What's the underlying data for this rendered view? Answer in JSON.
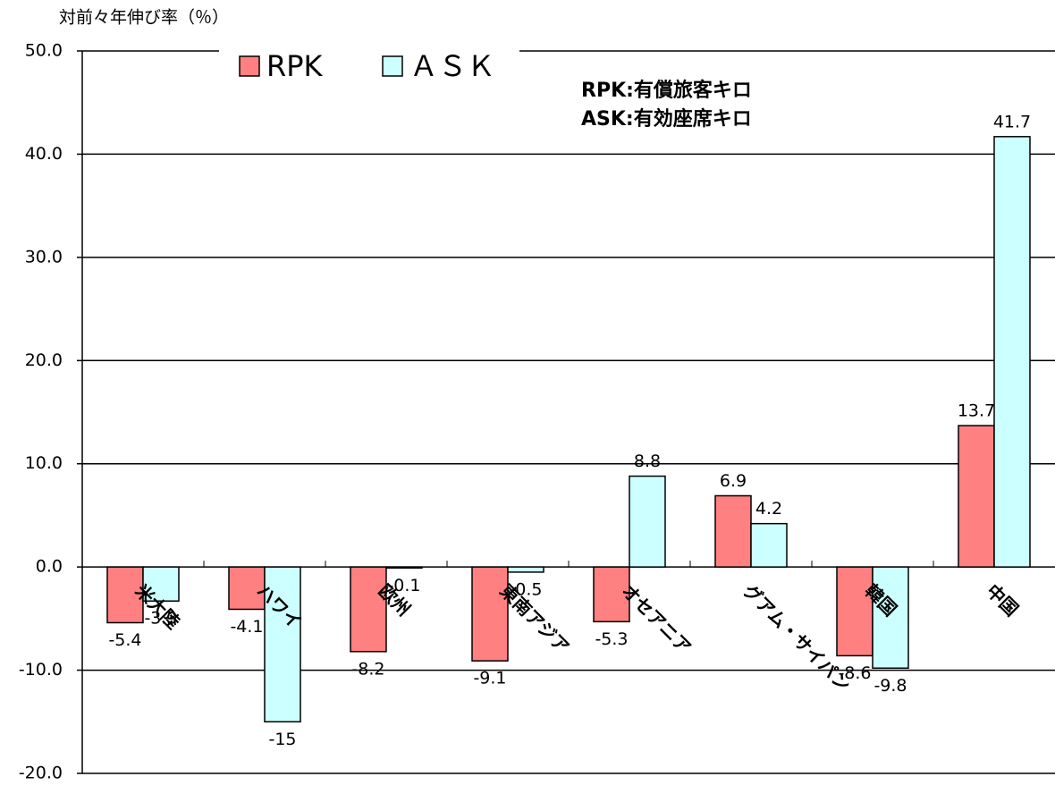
{
  "chart_data": {
    "type": "bar",
    "y_axis_label": "対前々年伸び率（％）",
    "annotations": [
      "RPK:有償旅客キロ",
      "ASK:有効座席キロ"
    ],
    "categories": [
      "米大陸",
      "ハワイ",
      "欧州",
      "東南アジア",
      "オセアニア",
      "グアム・サイパン",
      "韓国",
      "中国"
    ],
    "series": [
      {
        "name": "RPK",
        "color": "#ff8080",
        "values": [
          -5.4,
          -4.1,
          -8.2,
          -9.1,
          -5.3,
          6.9,
          -8.6,
          13.7
        ]
      },
      {
        "name": "ＡＳＫ",
        "color": "#ccffff",
        "values": [
          -3.3,
          -15.0,
          -0.1,
          -0.5,
          8.8,
          4.2,
          -9.8,
          41.7
        ]
      }
    ],
    "ylim": [
      -20,
      50
    ],
    "yticks": [
      {
        "value": -20,
        "label": "-20.0"
      },
      {
        "value": -10,
        "label": "-10.0"
      },
      {
        "value": 0,
        "label": "0.0"
      },
      {
        "value": 10,
        "label": "10.0"
      },
      {
        "value": 20,
        "label": "20.0"
      },
      {
        "value": 30,
        "label": "30.0"
      },
      {
        "value": 40,
        "label": "40.0"
      },
      {
        "value": 50,
        "label": "50.0"
      }
    ],
    "grid": true
  }
}
